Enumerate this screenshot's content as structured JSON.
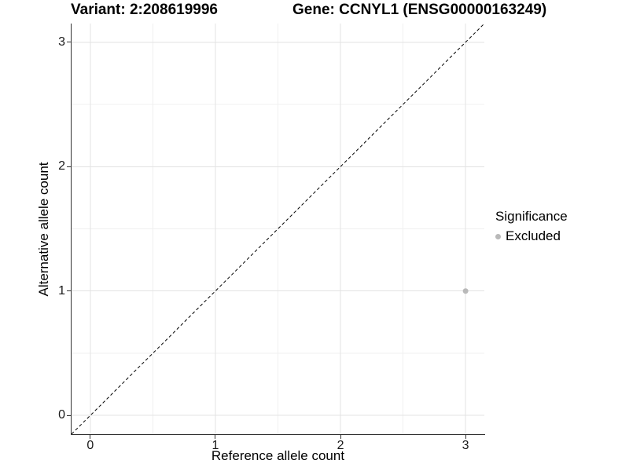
{
  "titles": {
    "variant": "Variant: 2:208619996",
    "gene": "Gene: CCNYL1 (ENSG00000163249)"
  },
  "axes": {
    "x": {
      "label": "Reference allele count",
      "tick_labels": [
        "0",
        "1",
        "2",
        "3"
      ]
    },
    "y": {
      "label": "Alternative allele count",
      "tick_labels": [
        "0",
        "1",
        "2",
        "3"
      ]
    }
  },
  "legend": {
    "title": "Significance",
    "items": [
      {
        "label": "Excluded",
        "marker": "circle-icon",
        "color": "#b9b9b9"
      }
    ]
  },
  "colors": {
    "background": "#ffffff",
    "axis_line": "#333333",
    "tick_mark": "#333333",
    "tick_label": "#1a1a1a",
    "grid_major": "#e3e3e3",
    "grid_minor": "#f0f0f0",
    "reference_line": "#000000",
    "point": "#b9b9b9",
    "text": "#000000"
  },
  "chart_data": {
    "type": "scatter",
    "title": "Variant: 2:208619996 | Gene: CCNYL1 (ENSG00000163249)",
    "xlabel": "Reference allele count",
    "ylabel": "Alternative allele count",
    "xlim": [
      -0.15,
      3.15
    ],
    "ylim": [
      -0.15,
      3.15
    ],
    "x_ticks": [
      0,
      1,
      2,
      3
    ],
    "y_ticks": [
      0,
      1,
      2,
      3
    ],
    "x_minor_ticks": [
      0.5,
      1.5,
      2.5
    ],
    "y_minor_ticks": [
      0.5,
      1.5,
      2.5
    ],
    "grid": true,
    "legend_position": "right",
    "legend_title": "Significance",
    "series": [
      {
        "name": "Excluded",
        "color": "#b9b9b9",
        "point_radius": 3.5,
        "points": [
          {
            "x": 3,
            "y": 1
          }
        ]
      }
    ],
    "reference_line": {
      "kind": "identity",
      "style": "dashed",
      "color": "#000000",
      "from": [
        -0.15,
        -0.15
      ],
      "to": [
        3.15,
        3.15
      ]
    }
  }
}
